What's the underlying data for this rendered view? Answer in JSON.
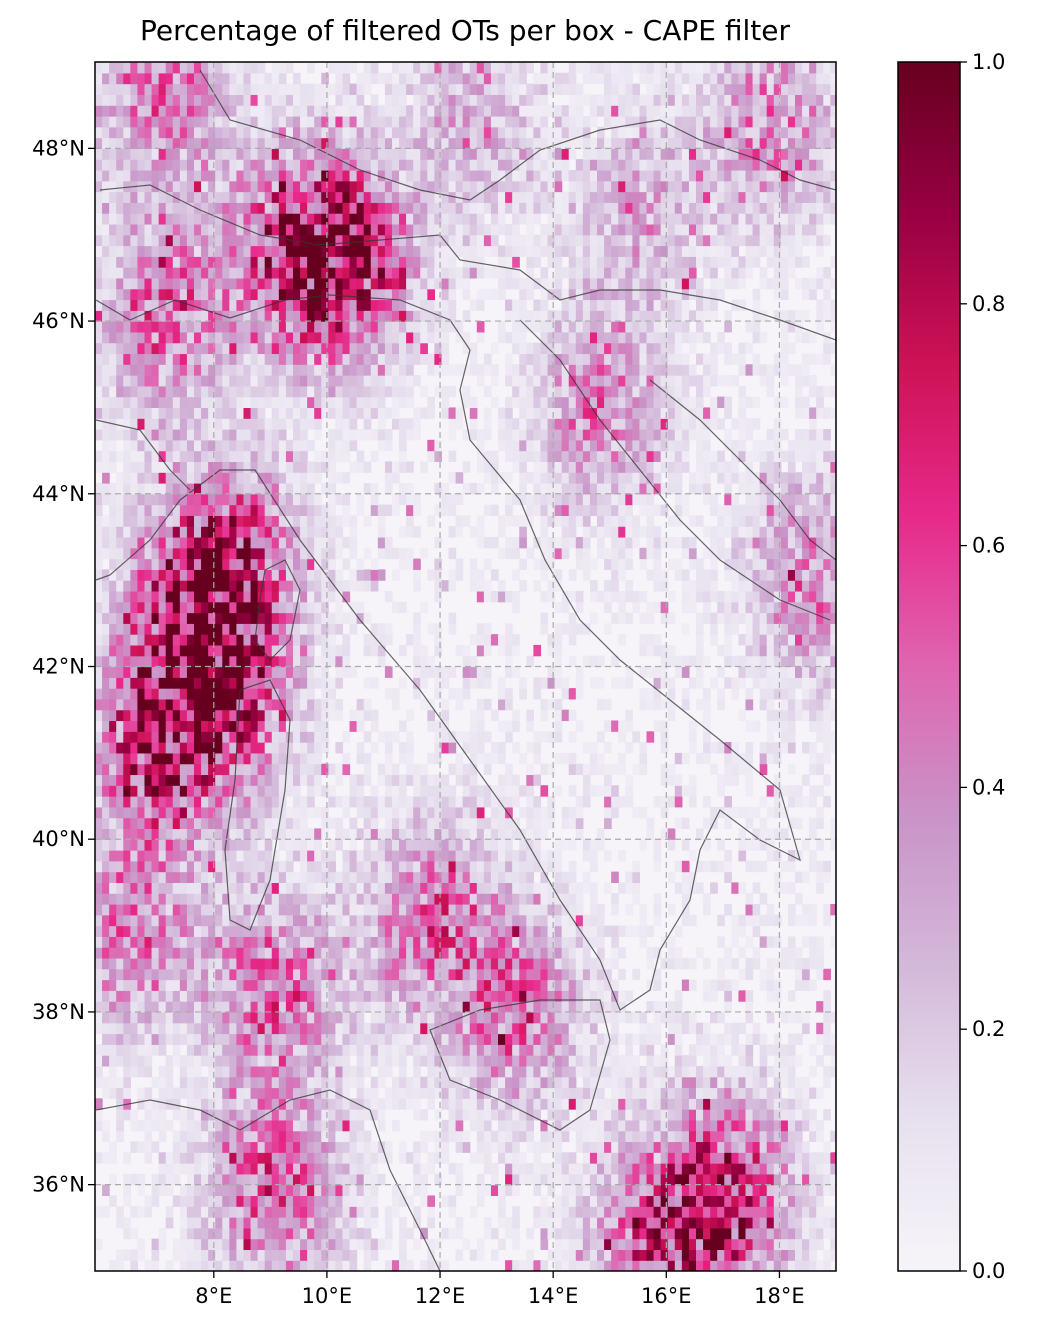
{
  "chart_data": {
    "type": "heatmap",
    "title": "Percentage of filtered OTs per box - CAPE filter",
    "xlabel": "",
    "ylabel": "",
    "x_range": [
      5.9,
      19.0
    ],
    "y_range": [
      35.0,
      49.0
    ],
    "x_ticks": [
      8,
      10,
      12,
      14,
      16,
      18
    ],
    "x_tick_labels": [
      "8°E",
      "10°E",
      "12°E",
      "14°E",
      "16°E",
      "18°E"
    ],
    "y_ticks": [
      36,
      38,
      40,
      42,
      44,
      46,
      48
    ],
    "y_tick_labels": [
      "36°N",
      "38°N",
      "40°N",
      "42°N",
      "44°N",
      "46°N",
      "48°N"
    ],
    "grid": true,
    "grid_style": "dashed",
    "colorbar": {
      "range": [
        0.0,
        1.0
      ],
      "ticks": [
        0.0,
        0.2,
        0.4,
        0.6,
        0.8,
        1.0
      ],
      "tick_labels": [
        "0.0",
        "0.2",
        "0.4",
        "0.6",
        "0.8",
        "1.0"
      ],
      "colormap": [
        "#f7f4f9",
        "#e7e1ef",
        "#d4b9da",
        "#c994c7",
        "#df65b0",
        "#e7298a",
        "#ce1256",
        "#980043",
        "#67001f"
      ]
    },
    "cell_size_deg": [
      0.125,
      0.125
    ],
    "hotspots": [
      {
        "lon": 10.3,
        "lat": 46.6,
        "value": 0.85
      },
      {
        "lon": 9.3,
        "lat": 46.8,
        "value": 0.6
      },
      {
        "lon": 7.1,
        "lat": 46.0,
        "value": 0.55
      },
      {
        "lon": 7.5,
        "lat": 42.6,
        "value": 0.7
      },
      {
        "lon": 7.0,
        "lat": 41.0,
        "value": 0.8
      },
      {
        "lon": 8.3,
        "lat": 43.2,
        "value": 0.65
      },
      {
        "lon": 8.2,
        "lat": 41.6,
        "value": 0.65
      },
      {
        "lon": 9.0,
        "lat": 38.2,
        "value": 0.55
      },
      {
        "lon": 11.8,
        "lat": 39.0,
        "value": 0.55
      },
      {
        "lon": 13.3,
        "lat": 38.0,
        "value": 0.5
      },
      {
        "lon": 9.0,
        "lat": 35.9,
        "value": 0.6
      },
      {
        "lon": 17.0,
        "lat": 35.8,
        "value": 0.75
      },
      {
        "lon": 15.8,
        "lat": 35.3,
        "value": 0.6
      },
      {
        "lon": 14.8,
        "lat": 45.0,
        "value": 0.45
      },
      {
        "lon": 7.0,
        "lat": 48.6,
        "value": 0.5
      },
      {
        "lon": 17.8,
        "lat": 48.2,
        "value": 0.45
      },
      {
        "lon": 18.5,
        "lat": 43.0,
        "value": 0.45
      },
      {
        "lon": 6.5,
        "lat": 38.8,
        "value": 0.45
      },
      {
        "lon": 12.5,
        "lat": 48.2,
        "value": 0.3
      },
      {
        "lon": 15.5,
        "lat": 47.2,
        "value": 0.3
      }
    ],
    "background_value": 0.12
  }
}
